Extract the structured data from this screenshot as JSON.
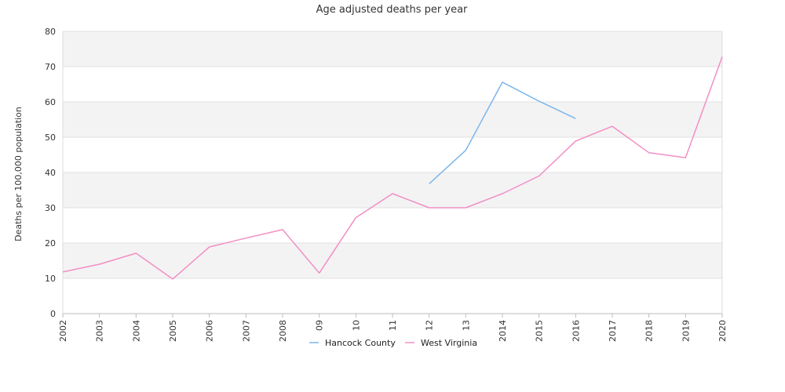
{
  "chart_data": {
    "type": "line",
    "title": "Age adjusted deaths per year",
    "xlabel": "",
    "ylabel": "Deaths per 100,000 population",
    "categories": [
      "2002",
      "2003",
      "2004",
      "2005",
      "2006",
      "2007",
      "2008",
      "09",
      "10",
      "11",
      "12",
      "13",
      "2014",
      "2015",
      "2016",
      "2017",
      "2018",
      "2019",
      "2020"
    ],
    "ylim": [
      0,
      80
    ],
    "yticks": [
      0,
      10,
      20,
      30,
      40,
      50,
      60,
      70,
      80
    ],
    "grid": "horizontal bands",
    "legend_position": "bottom-center",
    "series": [
      {
        "name": "Hancock County",
        "color": "#7cb5ec",
        "values": [
          null,
          null,
          null,
          null,
          null,
          null,
          null,
          null,
          null,
          null,
          36.8,
          46.3,
          65.6,
          60.2,
          55.3,
          null,
          null,
          null,
          null
        ]
      },
      {
        "name": "West Virginia",
        "color": "#f28fc4",
        "values": [
          11.8,
          14.0,
          17.1,
          9.8,
          18.9,
          21.4,
          23.8,
          11.5,
          27.2,
          34.0,
          30.0,
          30.0,
          34.0,
          39.0,
          48.9,
          53.1,
          45.6,
          44.2,
          72.8
        ]
      }
    ]
  }
}
